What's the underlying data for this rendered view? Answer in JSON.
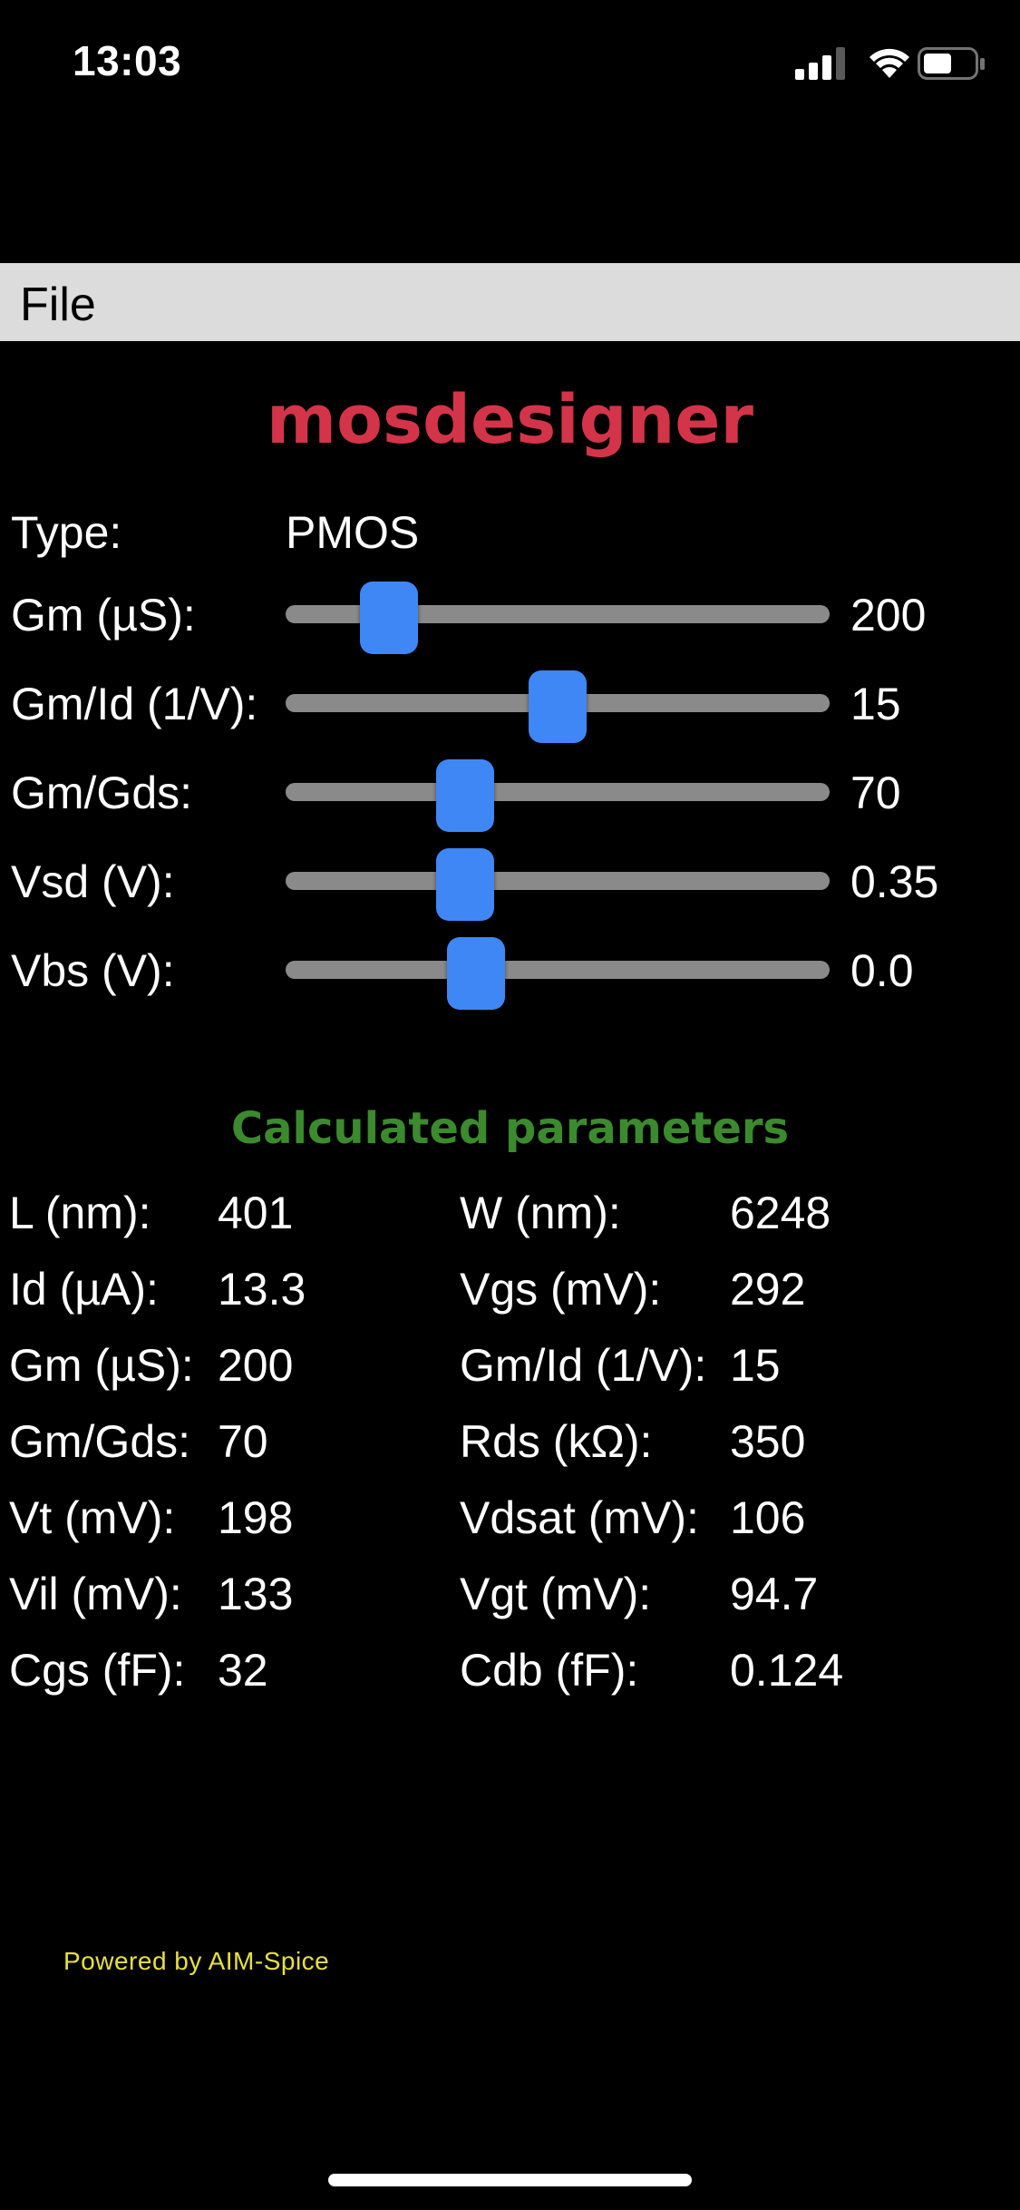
{
  "status_bar": {
    "time": "13:03",
    "icons": [
      "signal-icon",
      "wifi-icon",
      "battery-icon"
    ]
  },
  "menu": {
    "file_label": "File"
  },
  "app": {
    "title": "mosdesigner",
    "title_color": "#d4344a"
  },
  "inputs": {
    "type_label": "Type:",
    "type_value": "PMOS",
    "sliders": [
      {
        "label": "Gm (µS):",
        "value": "200",
        "position": 0.19
      },
      {
        "label": "Gm/Id (1/V):",
        "value": "15",
        "position": 0.5
      },
      {
        "label": "Gm/Gds:",
        "value": "70",
        "position": 0.33
      },
      {
        "label": "Vsd (V):",
        "value": "0.35",
        "position": 0.33
      },
      {
        "label": "Vbs (V):",
        "value": "0.0",
        "position": 0.35
      }
    ],
    "slider_thumb_color": "#3f87f5"
  },
  "calculated": {
    "title": "Calculated parameters",
    "title_color": "#3c8a2e",
    "left": [
      {
        "label": "L (nm):",
        "value": "401"
      },
      {
        "label": "Id (µA):",
        "value": "13.3"
      },
      {
        "label": "Gm (µS):",
        "value": "200"
      },
      {
        "label": "Gm/Gds:",
        "value": "70"
      },
      {
        "label": "Vt (mV):",
        "value": "198"
      },
      {
        "label": "Vil (mV):",
        "value": "133"
      },
      {
        "label": "Cgs (fF):",
        "value": "32"
      }
    ],
    "right": [
      {
        "label": "W (nm):",
        "value": "6248"
      },
      {
        "label": "Vgs (mV):",
        "value": "292"
      },
      {
        "label": "Gm/Id (1/V):",
        "value": "15"
      },
      {
        "label": "Rds (kΩ):",
        "value": "350"
      },
      {
        "label": "Vdsat (mV):",
        "value": "106"
      },
      {
        "label": "Vgt (mV):",
        "value": "94.7"
      },
      {
        "label": "Cdb (fF):",
        "value": "0.124"
      }
    ]
  },
  "footer": {
    "text": "Powered by AIM-Spice",
    "color": "#e6e040"
  }
}
